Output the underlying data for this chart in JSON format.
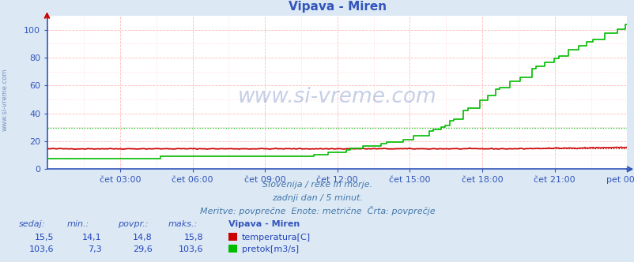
{
  "title": "Vipava - Miren",
  "bg_color": "#dce9f5",
  "plot_bg_color": "#ffffff",
  "grid_color": "#ffbbbb",
  "x_ticks_labels": [
    "čet 03:00",
    "čet 06:00",
    "čet 09:00",
    "čet 12:00",
    "čet 15:00",
    "čet 18:00",
    "čet 21:00",
    "pet 00:00"
  ],
  "y_ticks": [
    0,
    20,
    40,
    60,
    80,
    100
  ],
  "y_max": 110,
  "temp_avg": 14.8,
  "temp_color": "#cc0000",
  "flow_avg": 29.6,
  "flow_color": "#00bb00",
  "label_color": "#3355bb",
  "axis_color": "#3355bb",
  "watermark": "www.si-vreme.com",
  "side_label": "www.si-vreme.com",
  "subtitle1": "Slovenija / reke in morje.",
  "subtitle2": "zadnji dan / 5 minut.",
  "subtitle3": "Meritve: povprečne  Enote: metrične  Črta: povprečje",
  "col_headers": [
    "sedaj:",
    "min.:",
    "povpr.:",
    "maks.:",
    "Vipava - Miren"
  ],
  "temp_row": [
    "15,5",
    "14,1",
    "14,8",
    "15,8"
  ],
  "flow_row": [
    "103,6",
    "7,3",
    "29,6",
    "103,6"
  ],
  "temp_label": "temperatura[C]",
  "flow_label": "pretok[m3/s]",
  "n_points": 288
}
